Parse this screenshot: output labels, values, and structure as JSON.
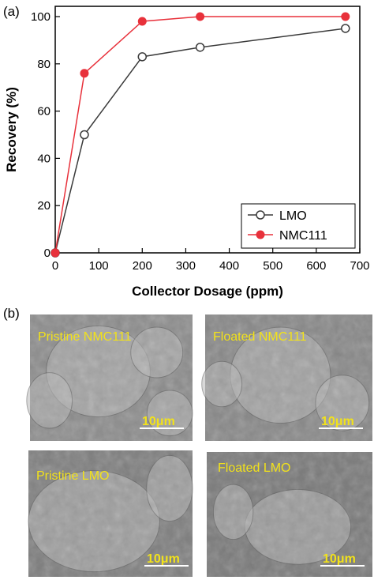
{
  "panel_a_label": "(a)",
  "panel_b_label": "(b)",
  "colors": {
    "lmo": "#3a3a3a",
    "nmc111": "#e8313b",
    "sem_text": "#f2e21a",
    "scale_bar": "#ffffff"
  },
  "chart_data": {
    "type": "line",
    "xlabel": "Collector Dosage (ppm)",
    "ylabel": "Recovery (%)",
    "xlim": [
      0,
      700
    ],
    "ylim": [
      0,
      100
    ],
    "xticks": [
      0,
      100,
      200,
      300,
      400,
      500,
      600,
      700
    ],
    "yticks": [
      0,
      20,
      40,
      60,
      80,
      100
    ],
    "legend_position": "bottom-right",
    "grid": false,
    "series": [
      {
        "name": "LMO",
        "marker": "open-circle",
        "color": "#3a3a3a",
        "points": [
          [
            0,
            0
          ],
          [
            67,
            50
          ],
          [
            200,
            83
          ],
          [
            333,
            87
          ],
          [
            667,
            95
          ]
        ]
      },
      {
        "name": "NMC111",
        "marker": "filled-circle",
        "color": "#e8313b",
        "points": [
          [
            0,
            0
          ],
          [
            67,
            76
          ],
          [
            200,
            98
          ],
          [
            333,
            100
          ],
          [
            667,
            100
          ]
        ]
      }
    ]
  },
  "sem_images": [
    {
      "label": "Pristine NMC111",
      "scale": "10μm",
      "tone": "#8c8c8c"
    },
    {
      "label": "Floated NMC111",
      "scale": "10μm",
      "tone": "#888888"
    },
    {
      "label": "Pristine LMO",
      "scale": "10μm",
      "tone": "#7e7e7e"
    },
    {
      "label": "Floated LMO",
      "scale": "10μm",
      "tone": "#7a7a7a"
    }
  ]
}
